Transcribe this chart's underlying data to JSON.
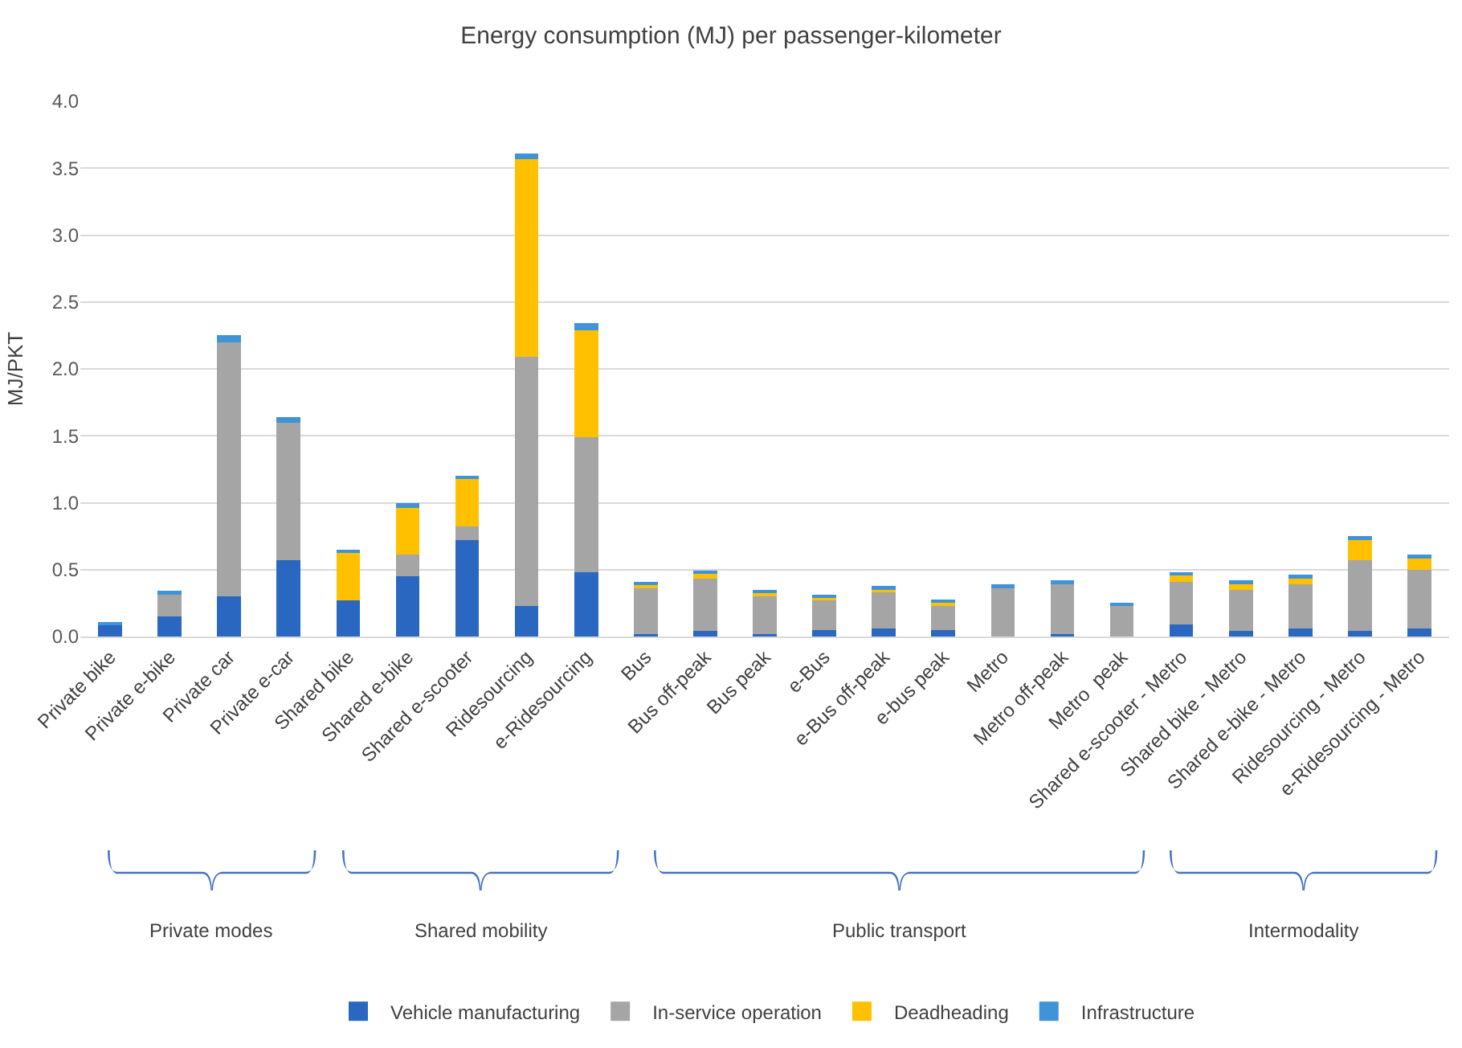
{
  "chart_data": {
    "type": "bar",
    "title": "Energy consumption (MJ) per passenger-kilometer",
    "ylabel": "MJ/PKT",
    "stacked": true,
    "categories": [
      "Private bike",
      "Private e-bike",
      "Private car",
      "Private e-car",
      "Shared bike",
      "Shared e-bike",
      "Shared e-scooter",
      "Ridesourcing",
      "e-Ridesourcing",
      "Bus",
      "Bus off-peak",
      "Bus peak",
      "e-Bus",
      "e-Bus off-peak",
      "e-bus peak",
      "Metro",
      "Metro off-peak",
      "Metro  peak",
      "Shared e-scooter - Metro",
      "Shared bike - Metro",
      "Shared e-bike - Metro",
      "Ridesourcing - Metro",
      "e-Ridesourcing - Metro"
    ],
    "series": [
      {
        "name": "Vehicle manufacturing",
        "color": "#2a67c0",
        "values": [
          0.09,
          0.15,
          0.3,
          0.57,
          0.27,
          0.45,
          0.72,
          0.23,
          0.48,
          0.02,
          0.04,
          0.02,
          0.05,
          0.06,
          0.05,
          0,
          0.02,
          0,
          0.09,
          0.04,
          0.06,
          0.04,
          0.06
        ]
      },
      {
        "name": "In-service operation",
        "color": "#a5a5a5",
        "values": [
          0,
          0.17,
          1.9,
          1.03,
          0,
          0.16,
          0.1,
          1.86,
          1.01,
          0.34,
          0.39,
          0.28,
          0.22,
          0.27,
          0.18,
          0.37,
          0.37,
          0.23,
          0.32,
          0.31,
          0.33,
          0.53,
          0.44
        ]
      },
      {
        "name": "Deadheading",
        "color": "#ffc000",
        "values": [
          0,
          0,
          0,
          0,
          0.36,
          0.35,
          0.36,
          1.48,
          0.8,
          0.03,
          0.05,
          0.03,
          0.03,
          0.03,
          0.03,
          0,
          0,
          0,
          0.05,
          0.04,
          0.05,
          0.16,
          0.08
        ]
      },
      {
        "name": "Infrastructure",
        "color": "#3f93d9",
        "values": [
          0.02,
          0.02,
          0.05,
          0.04,
          0.02,
          0.04,
          0.02,
          0.04,
          0.05,
          0.02,
          0.01,
          0.02,
          0.01,
          0.02,
          0.01,
          0.02,
          0.03,
          0.02,
          0.02,
          0.03,
          0.02,
          0.02,
          0.03
        ]
      }
    ],
    "ylim": [
      0,
      4
    ],
    "yticks": [
      {
        "value": 0,
        "label": "0.0"
      },
      0.5,
      {
        "value": 1,
        "label": "1.0"
      },
      1.5,
      {
        "value": 2,
        "label": "2.0"
      },
      2.5,
      {
        "value": 3,
        "label": "3.0"
      },
      3.5,
      {
        "value": 4,
        "label": "4.0"
      }
    ],
    "grid": "y",
    "legend": "bottom",
    "annotations": [
      "Private modes",
      "Shared mobility",
      "Public transport",
      "Intermodality"
    ]
  }
}
